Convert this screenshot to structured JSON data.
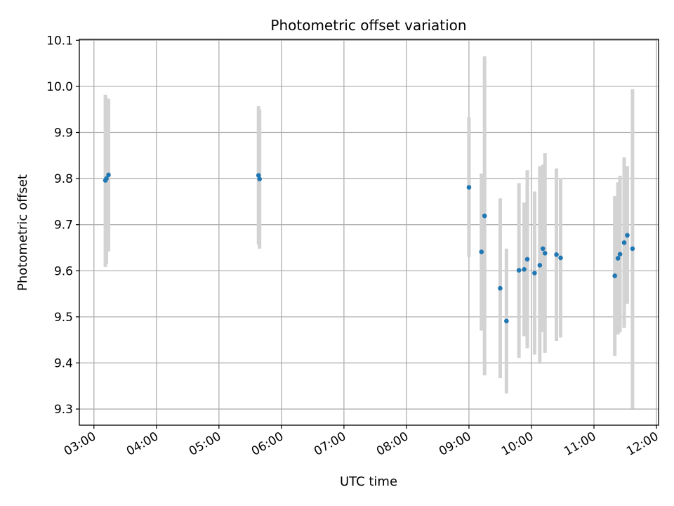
{
  "chart_data": {
    "type": "scatter",
    "title": "Photometric offset variation",
    "xlabel": "UTC time",
    "ylabel": "Photometric offset",
    "x_tick_labels": [
      "03:00",
      "04:00",
      "05:00",
      "06:00",
      "07:00",
      "08:00",
      "09:00",
      "10:00",
      "11:00",
      "12:00"
    ],
    "x_ticks_hours": [
      3,
      4,
      5,
      6,
      7,
      8,
      9,
      10,
      11,
      12
    ],
    "y_ticks": [
      9.3,
      9.4,
      9.5,
      9.6,
      9.7,
      9.8,
      9.9,
      10.0,
      10.1
    ],
    "y_tick_labels": [
      "9.3",
      "9.4",
      "9.5",
      "9.6",
      "9.7",
      "9.8",
      "9.9",
      "10.0",
      "10.1"
    ],
    "xlim": [
      "02:46",
      "12:02"
    ],
    "ylim": [
      9.265,
      10.102
    ],
    "grid": true,
    "marker_color": "#1f77b4",
    "errorbar_color": "#d3d3d3",
    "points": [
      {
        "time": "03:11",
        "y": 9.796,
        "low": 9.608,
        "high": 9.982
      },
      {
        "time": "03:12",
        "y": 9.8,
        "low": 9.615,
        "high": 9.975
      },
      {
        "time": "03:14",
        "y": 9.808,
        "low": 9.642,
        "high": 9.973
      },
      {
        "time": "05:38",
        "y": 9.807,
        "low": 9.657,
        "high": 9.957
      },
      {
        "time": "05:39",
        "y": 9.799,
        "low": 9.648,
        "high": 9.95
      },
      {
        "time": "09:00",
        "y": 9.781,
        "low": 9.63,
        "high": 9.933
      },
      {
        "time": "09:12",
        "y": 9.641,
        "low": 9.47,
        "high": 9.811
      },
      {
        "time": "09:15",
        "y": 9.719,
        "low": 9.373,
        "high": 10.065
      },
      {
        "time": "09:30",
        "y": 9.562,
        "low": 9.367,
        "high": 9.757
      },
      {
        "time": "09:36",
        "y": 9.491,
        "low": 9.334,
        "high": 9.648
      },
      {
        "time": "09:48",
        "y": 9.601,
        "low": 9.411,
        "high": 9.79
      },
      {
        "time": "09:53",
        "y": 9.603,
        "low": 9.458,
        "high": 9.748
      },
      {
        "time": "09:56",
        "y": 9.625,
        "low": 9.432,
        "high": 9.818
      },
      {
        "time": "10:03",
        "y": 9.595,
        "low": 9.418,
        "high": 9.772
      },
      {
        "time": "10:08",
        "y": 9.612,
        "low": 9.398,
        "high": 9.827
      },
      {
        "time": "10:11",
        "y": 9.648,
        "low": 9.467,
        "high": 9.83
      },
      {
        "time": "10:13",
        "y": 9.638,
        "low": 9.422,
        "high": 9.855
      },
      {
        "time": "10:24",
        "y": 9.635,
        "low": 9.448,
        "high": 9.822
      },
      {
        "time": "10:28",
        "y": 9.628,
        "low": 9.455,
        "high": 9.801
      },
      {
        "time": "11:20",
        "y": 9.589,
        "low": 9.415,
        "high": 9.762
      },
      {
        "time": "11:23",
        "y": 9.627,
        "low": 9.462,
        "high": 9.792
      },
      {
        "time": "11:25",
        "y": 9.636,
        "low": 9.467,
        "high": 9.806
      },
      {
        "time": "11:29",
        "y": 9.661,
        "low": 9.476,
        "high": 9.846
      },
      {
        "time": "11:32",
        "y": 9.677,
        "low": 9.528,
        "high": 9.827
      },
      {
        "time": "11:37",
        "y": 9.648,
        "low": 9.301,
        "high": 9.994
      }
    ]
  }
}
